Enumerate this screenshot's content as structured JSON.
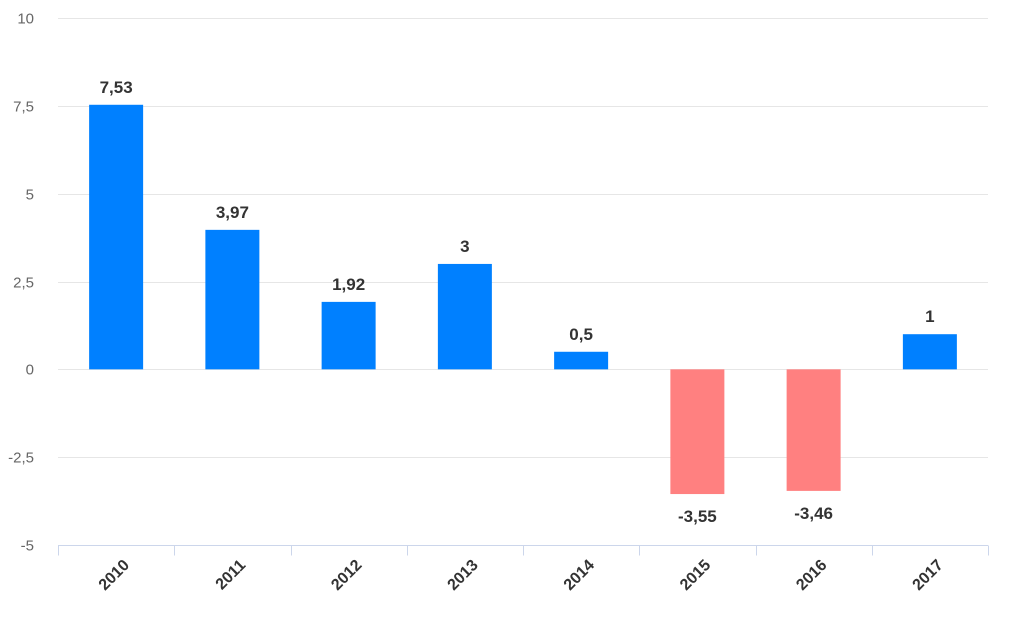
{
  "chart_data": {
    "type": "bar",
    "categories": [
      "2010",
      "2011",
      "2012",
      "2013",
      "2014",
      "2015",
      "2016",
      "2017"
    ],
    "values": [
      7.53,
      3.97,
      1.92,
      3,
      0.5,
      -3.55,
      -3.46,
      1
    ],
    "value_labels": [
      "7,53",
      "3,97",
      "1,92",
      "3",
      "0,5",
      "-3,55",
      "-3,46",
      "1"
    ],
    "ylim": [
      -5,
      10
    ],
    "yticks": [
      -5,
      -2.5,
      0,
      2.5,
      5,
      7.5,
      10
    ],
    "ytick_labels": [
      "-5",
      "-2,5",
      "0",
      "2,5",
      "5",
      "7,5",
      "10"
    ],
    "title": "",
    "xlabel": "",
    "ylabel": "",
    "grid": true,
    "legend": "none",
    "colors": {
      "positive": "#0080ff",
      "negative": "#ff8080"
    }
  }
}
